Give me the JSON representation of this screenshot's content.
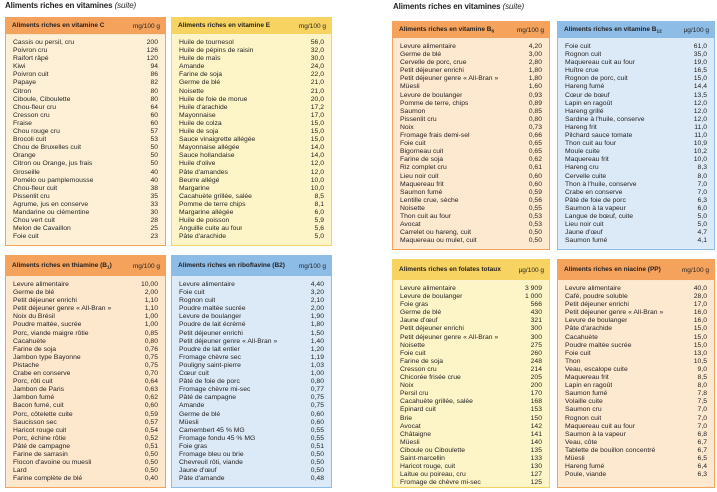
{
  "pages": [
    {
      "title": "Aliments riches en vitamines",
      "suffix": "(suite)"
    },
    {
      "title": "Aliments riches en vitamines",
      "suffix": "(suite)"
    }
  ],
  "tables": [
    {
      "title": "Aliments riches en vitamine C",
      "sub": "",
      "post": "",
      "unit": "mg/100 g",
      "header_color": "#f5a35c",
      "body_color": "#fdf0d6",
      "rows": [
        {
          "name": "Cassis ou persil, cru",
          "value": "200"
        },
        {
          "name": "Poivron cru",
          "value": "126"
        },
        {
          "name": "Raifort râpé",
          "value": "120"
        },
        {
          "name": "Kiwi",
          "value": "94"
        },
        {
          "name": "Poivron cuit",
          "value": "86"
        },
        {
          "name": "Papaye",
          "value": "82"
        },
        {
          "name": "Citron",
          "value": "80"
        },
        {
          "name": "Ciboule, Ciboulette",
          "value": "80"
        },
        {
          "name": "Chou-fleur cru",
          "value": "64"
        },
        {
          "name": "Cresson cru",
          "value": "60"
        },
        {
          "name": "Fraise",
          "value": "60"
        },
        {
          "name": "Chou rouge cru",
          "value": "57"
        },
        {
          "name": "Brocoli cuit",
          "value": "53"
        },
        {
          "name": "Chou de Bruxelles cuit",
          "value": "50"
        },
        {
          "name": "Orange",
          "value": "50"
        },
        {
          "name": "Citron ou Orange, jus frais",
          "value": "50"
        },
        {
          "name": "Groseille",
          "value": "40"
        },
        {
          "name": "Pomélo ou pamplemousse",
          "value": "40"
        },
        {
          "name": "Chou-fleur cuit",
          "value": "38"
        },
        {
          "name": "Pissenlit cru",
          "value": "35"
        },
        {
          "name": "Agrume, jus en conserve",
          "value": "33"
        },
        {
          "name": "Mandarine ou clémentine",
          "value": "30"
        },
        {
          "name": "Chou vert cuit",
          "value": "28"
        },
        {
          "name": "Melon de Cavaillon",
          "value": "25"
        },
        {
          "name": "Foie cuit",
          "value": "23"
        }
      ]
    },
    {
      "title": "Aliments riches en vitamine E",
      "sub": "",
      "post": "",
      "unit": "mg/100 g",
      "header_color": "#f7d461",
      "body_color": "#fdf4c8",
      "rows": [
        {
          "name": "Huile de tournesol",
          "value": "56,0"
        },
        {
          "name": "Huile de pépins de raisin",
          "value": "32,0"
        },
        {
          "name": "Huile de maïs",
          "value": "30,0"
        },
        {
          "name": "Amande",
          "value": "24,0"
        },
        {
          "name": "Farine de soja",
          "value": "22,0"
        },
        {
          "name": "Germe de blé",
          "value": "21,0"
        },
        {
          "name": "Noisette",
          "value": "21,0"
        },
        {
          "name": "Huile de foie de morue",
          "value": "20,0"
        },
        {
          "name": "Huile d'arachide",
          "value": "17,2"
        },
        {
          "name": "Mayonnaise",
          "value": "17,0"
        },
        {
          "name": "Huile de colza",
          "value": "15,0"
        },
        {
          "name": "Huile de soja",
          "value": "15,0"
        },
        {
          "name": "Sauce vinaigrette allégée",
          "value": "15,0"
        },
        {
          "name": "Mayonnaise allégée",
          "value": "14,0"
        },
        {
          "name": "Sauce hollandaise",
          "value": "14,0"
        },
        {
          "name": "Huile d'olive",
          "value": "12,0"
        },
        {
          "name": "Pâte d'amandes",
          "value": "12,0"
        },
        {
          "name": "Beurre allégé",
          "value": "10,0"
        },
        {
          "name": "Margarine",
          "value": "10,0"
        },
        {
          "name": "Cacahuète grillée, salée",
          "value": "8,5"
        },
        {
          "name": "Pomme de terre chips",
          "value": "8,1"
        },
        {
          "name": "Margarine allégée",
          "value": "6,0"
        },
        {
          "name": "Huile de poisson",
          "value": "5,9"
        },
        {
          "name": "Anguille cuite au four",
          "value": "5,6"
        },
        {
          "name": "Pâte d'arachide",
          "value": "5,0"
        }
      ]
    },
    {
      "title": "Aliments riches en thiamine (B",
      "sub": "1",
      "post": ")",
      "unit": "mg/100 g",
      "header_color": "#f5a35c",
      "body_color": "#fde7cd",
      "rows": [
        {
          "name": "Levure alimentaire",
          "value": "10,00"
        },
        {
          "name": "Germe de blé",
          "value": "2,00"
        },
        {
          "name": "Petit déjeuner enrichi",
          "value": "1,10"
        },
        {
          "name": "Petit déjeuner genre « All-Bran »",
          "value": "1,10"
        },
        {
          "name": "Noix du Brésil",
          "value": "1,00"
        },
        {
          "name": "Poudre maltée, sucrée",
          "value": "1,00"
        },
        {
          "name": "Porc, viande maigre rôtie",
          "value": "0,85"
        },
        {
          "name": "Cacahuète",
          "value": "0,80"
        },
        {
          "name": "Farine de soja",
          "value": "0,76"
        },
        {
          "name": "Jambon type Bayonne",
          "value": "0,75"
        },
        {
          "name": "Pistache",
          "value": "0,75"
        },
        {
          "name": "Crabe en conserve",
          "value": "0,70"
        },
        {
          "name": "Porc, rôti cuit",
          "value": "0,64"
        },
        {
          "name": "Jambon de Paris",
          "value": "0,63"
        },
        {
          "name": "Jambon fumé",
          "value": "0,62"
        },
        {
          "name": "Bacon fumé, cuit",
          "value": "0,60"
        },
        {
          "name": "Porc, côtelette cuite",
          "value": "0,59"
        },
        {
          "name": "Saucisson sec",
          "value": "0,57"
        },
        {
          "name": "Haricot rouge cuit",
          "value": "0,54"
        },
        {
          "name": "Porc, échine rôtie",
          "value": "0,52"
        },
        {
          "name": "Pâté de campagne",
          "value": "0,51"
        },
        {
          "name": "Farine de sarrasin",
          "value": "0,50"
        },
        {
          "name": "Flocon d'avoine ou muesli",
          "value": "0,50"
        },
        {
          "name": "Lard",
          "value": "0,50"
        },
        {
          "name": "Farine complète de blé",
          "value": "0,40"
        }
      ]
    },
    {
      "title": "Aliments riches en riboflavine (B2)",
      "sub": "",
      "post": "",
      "unit": "mg/100 g",
      "header_color": "#8dbce6",
      "body_color": "#dbeaf6",
      "rows": [
        {
          "name": "Levure alimentaire",
          "value": "4,40"
        },
        {
          "name": "Foie cuit",
          "value": "3,20"
        },
        {
          "name": "Rognon cuit",
          "value": "2,10"
        },
        {
          "name": "Poudre maltée sucrée",
          "value": "2,00"
        },
        {
          "name": "Levure de boulanger",
          "value": "1,90"
        },
        {
          "name": "Poudre de lait écrémé",
          "value": "1,80"
        },
        {
          "name": "Petit déjeuner enrichi",
          "value": "1,50"
        },
        {
          "name": "Petit déjeuner genre « All-Bran »",
          "value": "1,40"
        },
        {
          "name": "Poudre de lait entier",
          "value": "1,20"
        },
        {
          "name": "Fromage chèvre sec",
          "value": "1,19"
        },
        {
          "name": "Pouligny saint-pierre",
          "value": "1,03"
        },
        {
          "name": "Cœur cuit",
          "value": "1,00"
        },
        {
          "name": "Pâté de foie de porc",
          "value": "0,80"
        },
        {
          "name": "Fromage chèvre mi-sec",
          "value": "0,77"
        },
        {
          "name": "Pâté de campagne",
          "value": "0,75"
        },
        {
          "name": "Amande",
          "value": "0,75"
        },
        {
          "name": "Germe de blé",
          "value": "0,60"
        },
        {
          "name": "Müesli",
          "value": "0,60"
        },
        {
          "name": "Camembert 45 % MG",
          "value": "0,55"
        },
        {
          "name": "Fromage fondu 45 % MG",
          "value": "0,55"
        },
        {
          "name": "Foie gras",
          "value": "0,51"
        },
        {
          "name": "Fromage bleu ou brie",
          "value": "0,50"
        },
        {
          "name": "Chevreuil rôti, viande",
          "value": "0,50"
        },
        {
          "name": "Jaune d'œuf",
          "value": "0,50"
        },
        {
          "name": "Pâte d'amande",
          "value": "0,48"
        }
      ]
    },
    {
      "title": "Aliments riches en vitamine B",
      "sub": "6",
      "post": "",
      "unit": "mg/100 g",
      "header_color": "#f5a35c",
      "body_color": "#fde8d0",
      "rows": [
        {
          "name": "Levure alimentaire",
          "value": "4,20"
        },
        {
          "name": "Germe de blé",
          "value": "3,00"
        },
        {
          "name": "Cervelle de porc, crue",
          "value": "2,80"
        },
        {
          "name": "Petit déjeuner enrichi",
          "value": "1,80"
        },
        {
          "name": "Petit déjeuner genre « All-Bran »",
          "value": "1,80"
        },
        {
          "name": "Müesli",
          "value": "1,60"
        },
        {
          "name": "Levure de boulanger",
          "value": "0,93"
        },
        {
          "name": "Pomme de terre, chips",
          "value": "0,89"
        },
        {
          "name": "Saumon",
          "value": "0,85"
        },
        {
          "name": "Pissenlit cru",
          "value": "0,80"
        },
        {
          "name": "Noix",
          "value": "0,73"
        },
        {
          "name": "Fromage frais demi-sel",
          "value": "0,66"
        },
        {
          "name": "Foie cuit",
          "value": "0,65"
        },
        {
          "name": "Bigorneau cuit",
          "value": "0,65"
        },
        {
          "name": "Farine de soja",
          "value": "0,62"
        },
        {
          "name": "Riz complet cru",
          "value": "0,61"
        },
        {
          "name": "Lieu noir cuit",
          "value": "0,60"
        },
        {
          "name": "Maquereau frit",
          "value": "0,60"
        },
        {
          "name": "Saumon fumé",
          "value": "0,59"
        },
        {
          "name": "Lentille crue, sèche",
          "value": "0,56"
        },
        {
          "name": "Noisette",
          "value": "0,55"
        },
        {
          "name": "Thon cuit au four",
          "value": "0,53"
        },
        {
          "name": "Avocat",
          "value": "0,53"
        },
        {
          "name": "Carrelet ou hareng, cuit",
          "value": "0,50"
        },
        {
          "name": "Maquereau ou mulet, cuit",
          "value": "0,50"
        }
      ]
    },
    {
      "title": "Aliments riches en vitamine B",
      "sub": "12",
      "post": "",
      "unit": "µg/100 g",
      "header_color": "#8dbce6",
      "body_color": "#dbeaf6",
      "rows": [
        {
          "name": "Foie cuit",
          "value": "61,0"
        },
        {
          "name": "Rognon cuit",
          "value": "35,0"
        },
        {
          "name": "Maquereau cuit au four",
          "value": "19,0"
        },
        {
          "name": "Huître crue",
          "value": "16,5"
        },
        {
          "name": "Rognon de porc, cuit",
          "value": "15,0"
        },
        {
          "name": "Hareng fumé",
          "value": "14,4"
        },
        {
          "name": "Cœur de bœuf",
          "value": "13,5"
        },
        {
          "name": "Lapin en ragoût",
          "value": "12,0"
        },
        {
          "name": "Hareng grillé",
          "value": "12,0"
        },
        {
          "name": "Sardine à l'huile, conserve",
          "value": "12,0"
        },
        {
          "name": "Hareng frit",
          "value": "11,0"
        },
        {
          "name": "Pilchard sauce tomate",
          "value": "11,0"
        },
        {
          "name": "Thon cuit au four",
          "value": "10,9"
        },
        {
          "name": "Moule cuite",
          "value": "10,2"
        },
        {
          "name": "Maquereau frit",
          "value": "10,0"
        },
        {
          "name": "Hareng cru",
          "value": "8,3"
        },
        {
          "name": "Cervelle cuite",
          "value": "8,0"
        },
        {
          "name": "Thon à l'huile, conserve",
          "value": "7,0"
        },
        {
          "name": "Crabe en conserve",
          "value": "7,0"
        },
        {
          "name": "Pâté de foie de porc",
          "value": "6,3"
        },
        {
          "name": "Saumon à la vapeur",
          "value": "6,0"
        },
        {
          "name": "Langue de bœuf, cuite",
          "value": "5,0"
        },
        {
          "name": "Lieu noir cuit",
          "value": "5,0"
        },
        {
          "name": "Jaune d'œuf",
          "value": "4,7"
        },
        {
          "name": "Saumon fumé",
          "value": "4,1"
        }
      ]
    },
    {
      "title": "Aliments riches en folates totaux",
      "sub": "",
      "post": "",
      "unit": "µg/100 g",
      "header_color": "#f7d461",
      "body_color": "#fdf4c8",
      "rows": [
        {
          "name": "Levure alimentaire",
          "value": "3 909"
        },
        {
          "name": "Levure de boulanger",
          "value": "1 000"
        },
        {
          "name": "Foie gras",
          "value": "566"
        },
        {
          "name": "Germe de blé",
          "value": "430"
        },
        {
          "name": "Jaune d'œuf",
          "value": "321"
        },
        {
          "name": "Petit déjeuner enrichi",
          "value": "300"
        },
        {
          "name": "Petit déjeuner genre « All-Bran »",
          "value": "300"
        },
        {
          "name": "Noisette",
          "value": "275"
        },
        {
          "name": "Foie cuit",
          "value": "260"
        },
        {
          "name": "Farine de soja",
          "value": "248"
        },
        {
          "name": "Cresson cru",
          "value": "214"
        },
        {
          "name": "Chicorée frisée crue",
          "value": "205"
        },
        {
          "name": "Noix",
          "value": "200"
        },
        {
          "name": "Persil cru",
          "value": "170"
        },
        {
          "name": "Cacahuète grillée, salée",
          "value": "168"
        },
        {
          "name": "Épinard cuit",
          "value": "153"
        },
        {
          "name": "Brie",
          "value": "150"
        },
        {
          "name": "Avocat",
          "value": "142"
        },
        {
          "name": "Châtaigne",
          "value": "141"
        },
        {
          "name": "Müesli",
          "value": "140"
        },
        {
          "name": "Ciboule ou Ciboulette",
          "value": "135"
        },
        {
          "name": "Saint-marcellin",
          "value": "133"
        },
        {
          "name": "Haricot rouge, cuit",
          "value": "130"
        },
        {
          "name": "Laitue ou poireau, cru",
          "value": "127"
        },
        {
          "name": "Fromage de chèvre mi-sec",
          "value": "125"
        }
      ]
    },
    {
      "title": "Aliments riches en niacine (PP)",
      "sub": "",
      "post": "",
      "unit": "mg/100 g",
      "header_color": "#f5a35c",
      "body_color": "#fde8d0",
      "rows": [
        {
          "name": "Levure alimentaire",
          "value": "40,0"
        },
        {
          "name": "Café, poudre soluble",
          "value": "28,0"
        },
        {
          "name": "Petit déjeuner enrichi",
          "value": "17,0"
        },
        {
          "name": "Petit déjeuner genre « All-Bran »",
          "value": "16,0"
        },
        {
          "name": "Levure de boulanger",
          "value": "16,0"
        },
        {
          "name": "Pâte d'arachide",
          "value": "15,0"
        },
        {
          "name": "Cacahuète",
          "value": "15,0"
        },
        {
          "name": "Poudre maltée sucrée",
          "value": "15,0"
        },
        {
          "name": "Foie cuit",
          "value": "13,0"
        },
        {
          "name": "Thon",
          "value": "10,5"
        },
        {
          "name": "Veau, escalope cuite",
          "value": "9,0"
        },
        {
          "name": "Maquereau frit",
          "value": "8,5"
        },
        {
          "name": "Lapin en ragoût",
          "value": "8,0"
        },
        {
          "name": "Saumon fumé",
          "value": "7,8"
        },
        {
          "name": "Volaille cuite",
          "value": "7,5"
        },
        {
          "name": "Saumon cru",
          "value": "7,0"
        },
        {
          "name": "Rognon cuit",
          "value": "7,0"
        },
        {
          "name": "Maquereau cuit au four",
          "value": "7,0"
        },
        {
          "name": "Saumon à la vapeur",
          "value": "6,8"
        },
        {
          "name": "Veau, côte",
          "value": "6,7"
        },
        {
          "name": "Tablette de bouillon concentré",
          "value": "6,7"
        },
        {
          "name": "Müesli",
          "value": "6,5"
        },
        {
          "name": "Hareng fumé",
          "value": "6,4"
        },
        {
          "name": "Poule, viande",
          "value": "6,3"
        }
      ]
    }
  ]
}
